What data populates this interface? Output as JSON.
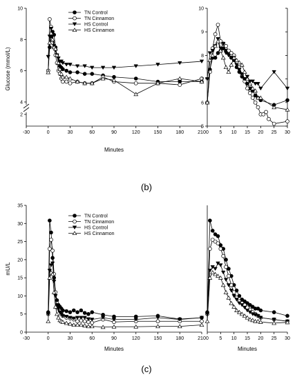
{
  "panel_labels": [
    "(b)",
    "(c)"
  ],
  "chart_data": [
    {
      "type": "line",
      "panel": "b",
      "ylabel": "Glucose (mmol/L)",
      "xlabel": "Minutes",
      "x_ticks": [
        "-30",
        "0",
        "30",
        "60",
        "90",
        "120",
        "150",
        "180",
        "210"
      ],
      "y_ticks": [
        "2",
        "4",
        "6",
        "8",
        "10"
      ],
      "ylim": [
        0,
        10
      ],
      "axis_break": "between 2 and 4",
      "legend_placement": "top-center",
      "series": [
        {
          "name": "TN Control",
          "marker": "filled-circle",
          "x": [
            0,
            2,
            4,
            6,
            8,
            10,
            12,
            14,
            16,
            18,
            20,
            25,
            30,
            40,
            50,
            60,
            75,
            90,
            120,
            150,
            180,
            210
          ],
          "values": [
            6.0,
            7.5,
            8.2,
            8.5,
            8.3,
            7.5,
            7.0,
            6.5,
            6.3,
            6.2,
            6.1,
            6.0,
            5.9,
            5.9,
            5.8,
            5.8,
            5.7,
            5.6,
            5.5,
            5.3,
            5.3,
            5.3
          ]
        },
        {
          "name": "TN Cinnamon",
          "marker": "open-circle",
          "x": [
            0,
            2,
            4,
            6,
            8,
            10,
            12,
            14,
            16,
            18,
            20,
            25,
            30,
            40,
            50,
            60,
            75,
            90,
            120,
            150,
            180,
            210
          ],
          "values": [
            6.0,
            9.3,
            8.8,
            7.8,
            7.5,
            7.0,
            6.5,
            6.0,
            5.8,
            5.5,
            5.3,
            5.3,
            5.2,
            5.3,
            5.2,
            5.2,
            5.6,
            5.3,
            5.2,
            5.2,
            5.1,
            5.5
          ]
        },
        {
          "name": "HS Control",
          "marker": "filled-triangle-down",
          "x": [
            0,
            2,
            4,
            6,
            8,
            10,
            12,
            14,
            16,
            18,
            20,
            25,
            30,
            40,
            50,
            60,
            75,
            90,
            120,
            150,
            180,
            210
          ],
          "values": [
            6.9,
            8.2,
            8.7,
            8.3,
            7.6,
            7.3,
            7.0,
            6.8,
            6.6,
            6.6,
            6.5,
            6.4,
            6.4,
            6.3,
            6.3,
            6.2,
            6.2,
            6.2,
            6.3,
            6.4,
            6.5,
            6.6
          ]
        },
        {
          "name": "HS Cinnamon",
          "marker": "open-triangle-up",
          "x": [
            0,
            2,
            4,
            6,
            8,
            10,
            12,
            14,
            16,
            18,
            20,
            25,
            30,
            40,
            50,
            60,
            75,
            90,
            120,
            150,
            180,
            210
          ],
          "values": [
            5.9,
            7.8,
            8.4,
            8.0,
            7.5,
            7.4,
            7.0,
            6.5,
            6.1,
            5.8,
            5.6,
            5.6,
            5.5,
            5.3,
            5.2,
            5.2,
            5.5,
            5.4,
            4.5,
            5.2,
            5.5,
            5.3
          ]
        }
      ]
    },
    {
      "type": "line",
      "panel": "b-zoom",
      "xlabel": "",
      "ylabel": "",
      "x_ticks": [
        "0",
        "5",
        "10",
        "15",
        "20",
        "25",
        "30"
      ],
      "y_ticks": [
        "5",
        "6",
        "7",
        "8",
        "9",
        "10"
      ],
      "xlim": [
        0,
        30
      ],
      "ylim": [
        5,
        10
      ],
      "series": [
        {
          "name": "TN Control",
          "x": [
            0,
            1,
            2,
            3,
            4,
            5,
            6,
            7,
            8,
            9,
            10,
            11,
            12,
            13,
            14,
            15,
            16,
            17,
            18,
            19,
            20,
            25,
            30
          ],
          "values": [
            6.0,
            7.4,
            7.9,
            7.9,
            8.1,
            8.2,
            8.3,
            8.2,
            8.1,
            7.9,
            7.8,
            7.5,
            7.3,
            7.1,
            7.0,
            6.8,
            6.6,
            6.5,
            6.3,
            6.2,
            6.1,
            5.9,
            6.1
          ]
        },
        {
          "name": "TN Cinnamon",
          "x": [
            0,
            1,
            2,
            3,
            4,
            5,
            6,
            7,
            8,
            9,
            10,
            11,
            12,
            13,
            14,
            15,
            16,
            17,
            18,
            19,
            20,
            21,
            22,
            23,
            25,
            30
          ],
          "values": [
            6.0,
            7.3,
            8.3,
            8.9,
            9.3,
            8.6,
            8.5,
            8.4,
            8.2,
            8.1,
            8.0,
            7.7,
            7.5,
            7.2,
            6.9,
            6.6,
            6.4,
            6.2,
            6.0,
            5.8,
            5.5,
            5.5,
            5.6,
            5.3,
            5.1,
            5.2
          ]
        },
        {
          "name": "HS Control",
          "x": [
            0,
            1,
            2,
            3,
            4,
            5,
            6,
            7,
            8,
            9,
            10,
            11,
            12,
            13,
            14,
            15,
            16,
            17,
            18,
            19,
            20,
            25,
            30
          ],
          "values": [
            7.0,
            8.1,
            8.2,
            8.4,
            8.7,
            8.3,
            8.5,
            8.1,
            8.0,
            7.9,
            7.9,
            7.6,
            7.4,
            7.2,
            7.0,
            7.1,
            6.9,
            6.9,
            6.8,
            6.8,
            6.6,
            7.3,
            6.6
          ]
        },
        {
          "name": "HS Cinnamon",
          "x": [
            0,
            1,
            2,
            3,
            4,
            5,
            6,
            7,
            8,
            9,
            10,
            11,
            12,
            13,
            14,
            15,
            16,
            17,
            18,
            19,
            20,
            25,
            30
          ],
          "values": [
            6.0,
            7.8,
            8.0,
            8.4,
            8.6,
            8.2,
            7.9,
            7.5,
            7.3,
            7.6,
            7.9,
            7.8,
            7.7,
            7.6,
            7.3,
            7.0,
            6.8,
            6.6,
            6.5,
            6.2,
            6.2,
            5.8,
            5.7
          ]
        }
      ]
    },
    {
      "type": "line",
      "panel": "c",
      "ylabel": "mU/L",
      "xlabel": "Minutes",
      "x_ticks": [
        "-30",
        "0",
        "30",
        "60",
        "90",
        "120",
        "150",
        "180",
        "210"
      ],
      "y_ticks": [
        "0",
        "5",
        "10",
        "15",
        "20",
        "25",
        "30",
        "35"
      ],
      "ylim": [
        0,
        35
      ],
      "legend_placement": "top-center",
      "series": [
        {
          "name": "TN Control",
          "marker": "filled-circle",
          "x": [
            0,
            2,
            4,
            6,
            8,
            10,
            12,
            14,
            16,
            18,
            20,
            25,
            30,
            35,
            40,
            45,
            50,
            55,
            60,
            75,
            90,
            120,
            150,
            180,
            210
          ],
          "values": [
            5.5,
            30.8,
            27.5,
            20.5,
            15.0,
            11.0,
            8.8,
            7.5,
            7.0,
            6.5,
            6.0,
            5.8,
            5.5,
            6.0,
            5.5,
            6.0,
            5.3,
            5.0,
            5.5,
            4.8,
            4.3,
            4.3,
            4.5,
            3.6,
            4.0
          ]
        },
        {
          "name": "TN Cinnamon",
          "marker": "open-circle",
          "x": [
            0,
            2,
            4,
            6,
            8,
            10,
            12,
            14,
            16,
            18,
            20,
            25,
            30,
            35,
            40,
            45,
            50,
            55,
            60,
            75,
            90,
            120,
            150,
            180,
            210
          ],
          "values": [
            5.0,
            23.0,
            25.5,
            22.5,
            16.0,
            11.0,
            8.0,
            6.5,
            5.8,
            5.0,
            4.5,
            4.0,
            3.8,
            3.5,
            3.0,
            3.2,
            3.0,
            2.8,
            2.6,
            3.5,
            2.8,
            3.0,
            3.0,
            3.0,
            3.0
          ]
        },
        {
          "name": "HS Control",
          "marker": "filled-triangle-down",
          "x": [
            0,
            2,
            4,
            6,
            8,
            10,
            12,
            14,
            16,
            18,
            20,
            25,
            30,
            35,
            40,
            45,
            50,
            55,
            60,
            75,
            90,
            120,
            150,
            180,
            210
          ],
          "values": [
            5.0,
            17.0,
            18.5,
            19.0,
            14.0,
            10.0,
            7.5,
            6.5,
            5.5,
            5.0,
            4.5,
            4.3,
            4.0,
            3.8,
            4.0,
            4.0,
            4.0,
            3.6,
            3.5,
            4.0,
            3.5,
            3.5,
            4.0,
            3.5,
            4.0
          ]
        },
        {
          "name": "HS Cinnamon",
          "marker": "open-triangle-up",
          "x": [
            0,
            2,
            4,
            6,
            8,
            10,
            12,
            14,
            16,
            18,
            20,
            25,
            30,
            35,
            40,
            45,
            50,
            55,
            60,
            75,
            90,
            120,
            150,
            180,
            210
          ],
          "values": [
            3.0,
            15.0,
            16.5,
            16.0,
            11.0,
            7.0,
            5.0,
            4.0,
            3.3,
            3.0,
            2.8,
            2.5,
            2.3,
            2.0,
            2.0,
            2.0,
            1.8,
            1.6,
            1.6,
            1.4,
            1.5,
            1.5,
            1.6,
            1.6,
            2.0
          ]
        }
      ]
    },
    {
      "type": "line",
      "panel": "c-zoom",
      "xlabel": "Minutes",
      "ylabel": "",
      "x_ticks": [
        "0",
        "5",
        "10",
        "15",
        "20",
        "25",
        "30"
      ],
      "xlim": [
        0,
        30
      ],
      "ylim": [
        0,
        35
      ],
      "series": [
        {
          "name": "TN Control",
          "x": [
            0,
            1,
            2,
            3,
            4,
            5,
            6,
            7,
            8,
            9,
            10,
            11,
            12,
            13,
            14,
            15,
            16,
            17,
            18,
            19,
            20,
            25,
            30
          ],
          "values": [
            5.5,
            30.8,
            28.0,
            27.0,
            26.5,
            24.0,
            23.0,
            20.0,
            17.5,
            15.5,
            13.0,
            11.5,
            10.0,
            9.0,
            8.5,
            8.0,
            7.5,
            7.0,
            6.5,
            6.5,
            6.0,
            5.5,
            4.5
          ]
        },
        {
          "name": "TN Cinnamon",
          "x": [
            0,
            1,
            2,
            3,
            4,
            5,
            6,
            7,
            8,
            9,
            10,
            11,
            12,
            13,
            14,
            15,
            16,
            17,
            18,
            19,
            20,
            25,
            30
          ],
          "values": [
            5.0,
            23.0,
            25.5,
            25.0,
            24.5,
            23.0,
            21.0,
            18.0,
            15.5,
            13.0,
            11.0,
            9.5,
            8.5,
            8.0,
            7.5,
            6.8,
            6.2,
            5.5,
            5.0,
            4.5,
            4.0,
            3.5,
            3.0
          ]
        },
        {
          "name": "HS Control",
          "x": [
            0,
            1,
            2,
            3,
            4,
            5,
            6,
            7,
            8,
            9,
            10,
            11,
            12,
            13,
            14,
            15,
            16,
            17,
            18,
            19,
            20,
            25,
            30
          ],
          "values": [
            5.0,
            17.0,
            18.0,
            17.5,
            19.0,
            18.5,
            16.5,
            14.5,
            13.0,
            11.5,
            10.0,
            9.0,
            8.0,
            7.5,
            6.8,
            6.0,
            5.5,
            5.0,
            4.8,
            4.5,
            4.0,
            3.5,
            3.0
          ]
        },
        {
          "name": "HS Cinnamon",
          "x": [
            0,
            1,
            2,
            3,
            4,
            5,
            6,
            7,
            8,
            9,
            10,
            11,
            12,
            13,
            14,
            15,
            16,
            17,
            18,
            19,
            20,
            25,
            30
          ],
          "values": [
            3.0,
            15.0,
            16.5,
            16.0,
            15.5,
            15.0,
            13.0,
            11.0,
            9.5,
            8.0,
            7.0,
            6.0,
            5.5,
            5.0,
            4.5,
            4.0,
            3.5,
            3.3,
            3.0,
            3.0,
            2.8,
            2.5,
            2.7
          ]
        }
      ]
    }
  ]
}
